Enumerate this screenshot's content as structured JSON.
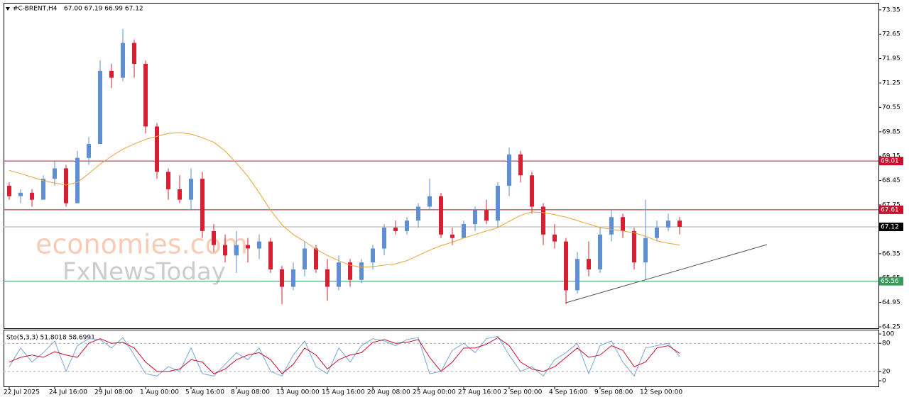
{
  "chart_data": [
    {
      "type": "candlestick",
      "title": "#C-BRENT,H4",
      "ohlc_text": "67.00 67.19 66.99 67.12",
      "categories": [
        "22 Jul 2025",
        null,
        null,
        null,
        "24 Jul 16:00",
        null,
        null,
        null,
        "29 Jul 08:00",
        null,
        null,
        null,
        "1 Aug 00:00",
        null,
        null,
        null,
        "5 Aug 16:00",
        null,
        null,
        null,
        "8 Aug 08:00",
        null,
        null,
        null,
        "13 Aug 00:00",
        null,
        null,
        null,
        "15 Aug 16:00",
        null,
        null,
        null,
        "20 Aug 08:00",
        null,
        null,
        null,
        "25 Aug 00:00",
        null,
        null,
        null,
        "27 Aug 16:00",
        null,
        null,
        null,
        "2 Sep 00:00",
        null,
        null,
        null,
        "4 Sep 16:00",
        null,
        null,
        null,
        "9 Sep 08:00",
        null,
        null,
        null,
        "12 Sep 00:00",
        null,
        null,
        null
      ],
      "open": [
        68.3,
        68.0,
        68.1,
        67.9,
        68.5,
        68.8,
        67.8,
        69.1,
        69.5,
        71.6,
        71.4,
        72.4,
        71.8,
        70.0,
        68.7,
        68.2,
        67.9,
        68.5,
        67.0,
        66.6,
        66.3,
        66.6,
        66.5,
        66.7,
        65.9,
        65.4,
        65.9,
        66.5,
        65.9,
        65.4,
        66.1,
        65.6,
        66.1,
        66.5,
        67.1,
        67.0,
        67.3,
        67.7,
        68.0,
        66.9,
        66.8,
        67.2,
        67.6,
        67.3,
        68.3,
        69.2,
        68.6,
        67.7,
        66.9,
        66.7,
        65.3,
        66.2,
        65.9,
        66.9,
        67.4,
        67.0,
        66.1,
        66.8,
        67.1,
        67.3
      ],
      "high": [
        68.4,
        68.2,
        68.2,
        68.6,
        69.0,
        68.9,
        69.3,
        69.7,
        71.9,
        71.8,
        72.8,
        72.5,
        71.9,
        70.1,
        68.8,
        68.6,
        68.8,
        68.7,
        67.2,
        66.9,
        67.0,
        66.8,
        66.9,
        66.8,
        66.0,
        66.1,
        66.7,
        66.6,
        66.2,
        66.3,
        66.2,
        66.2,
        66.6,
        67.2,
        67.3,
        67.4,
        67.8,
        68.5,
        68.1,
        67.1,
        67.3,
        67.7,
        67.9,
        68.4,
        69.4,
        69.3,
        68.7,
        67.8,
        67.2,
        66.8,
        66.4,
        66.7,
        67.1,
        67.6,
        67.5,
        67.1,
        67.9,
        67.3,
        67.5,
        67.4
      ],
      "low": [
        67.9,
        67.8,
        67.7,
        67.9,
        68.3,
        67.7,
        67.8,
        68.9,
        69.5,
        71.1,
        71.3,
        71.4,
        69.8,
        68.5,
        67.9,
        67.8,
        67.6,
        66.8,
        66.4,
        66.1,
        65.8,
        66.1,
        66.2,
        65.8,
        64.9,
        65.3,
        65.7,
        65.8,
        65.0,
        65.3,
        65.4,
        65.5,
        65.9,
        66.3,
        66.9,
        66.9,
        67.1,
        67.6,
        66.8,
        66.6,
        66.8,
        67.0,
        67.2,
        67.1,
        68.0,
        68.4,
        67.5,
        66.6,
        66.5,
        64.9,
        65.2,
        65.7,
        65.8,
        66.7,
        66.8,
        65.9,
        65.6,
        66.7,
        67.0,
        66.9
      ],
      "close": [
        68.0,
        68.1,
        67.9,
        68.5,
        68.8,
        67.8,
        69.1,
        69.5,
        71.6,
        71.4,
        72.4,
        71.8,
        70.0,
        68.7,
        68.2,
        67.9,
        68.5,
        67.0,
        66.6,
        66.3,
        66.6,
        66.5,
        66.7,
        65.9,
        65.4,
        65.9,
        66.5,
        65.9,
        65.4,
        66.1,
        65.6,
        66.1,
        66.5,
        67.1,
        67.0,
        67.3,
        67.7,
        68.0,
        66.9,
        66.8,
        67.2,
        67.6,
        67.3,
        68.3,
        69.2,
        68.6,
        67.7,
        66.9,
        66.7,
        65.3,
        66.2,
        65.9,
        66.9,
        67.4,
        67.0,
        66.1,
        66.8,
        67.1,
        67.3,
        67.12
      ],
      "up_color": "#5b8fd6",
      "down_color": "#d42030",
      "ma": {
        "color": "#e8a33a",
        "values": [
          68.74,
          68.65,
          68.55,
          68.45,
          68.38,
          68.32,
          68.4,
          68.65,
          68.92,
          69.15,
          69.35,
          69.5,
          69.63,
          69.72,
          69.8,
          69.83,
          69.78,
          69.68,
          69.55,
          69.3,
          68.95,
          68.57,
          68.1,
          67.6,
          67.18,
          66.9,
          66.7,
          66.48,
          66.3,
          66.15,
          66.02,
          65.96,
          65.98,
          66.02,
          66.06,
          66.15,
          66.3,
          66.45,
          66.58,
          66.68,
          66.8,
          66.9,
          67.0,
          67.1,
          67.28,
          67.45,
          67.55,
          67.53,
          67.47,
          67.4,
          67.3,
          67.2,
          67.1,
          67.05,
          67.0,
          66.95,
          66.85,
          66.72,
          66.65,
          66.6
        ]
      },
      "ylim": [
        64.21,
        73.53
      ],
      "yticks": [
        73.35,
        72.65,
        71.95,
        71.25,
        70.55,
        69.85,
        69.15,
        68.45,
        67.75,
        67.05,
        66.35,
        65.65,
        64.95,
        64.25
      ],
      "levels": [
        {
          "value": 69.01,
          "color": "#c8102e"
        },
        {
          "value": 67.61,
          "color": "#c8102e"
        },
        {
          "value": 67.12,
          "color": "#000000"
        },
        {
          "value": 65.56,
          "color": "#3a9a5a"
        }
      ],
      "watermark": [
        "economies.com",
        "FxNewsToday"
      ]
    },
    {
      "type": "line",
      "title": "Sto(5,3,3) 51.8018 58.6991",
      "ylim": [
        -12.1,
        107.6
      ],
      "yticks": [
        100,
        80,
        20,
        0
      ],
      "series": [
        {
          "color": "#7aa6d8",
          "values": [
            30,
            70,
            40,
            60,
            85,
            20,
            75,
            90,
            88,
            70,
            92,
            55,
            15,
            10,
            30,
            20,
            70,
            15,
            10,
            35,
            60,
            45,
            70,
            20,
            10,
            55,
            85,
            30,
            15,
            70,
            40,
            75,
            90,
            85,
            75,
            88,
            92,
            15,
            20,
            65,
            80,
            60,
            90,
            95,
            55,
            20,
            30,
            10,
            45,
            60,
            80,
            15,
            75,
            85,
            40,
            10,
            70,
            75,
            80,
            51.8018
          ]
        },
        {
          "color": "#c8102e",
          "values": [
            40,
            50,
            55,
            50,
            62,
            55,
            50,
            80,
            90,
            80,
            82,
            70,
            40,
            20,
            20,
            25,
            45,
            40,
            15,
            25,
            45,
            55,
            60,
            45,
            15,
            35,
            70,
            55,
            25,
            45,
            55,
            60,
            82,
            88,
            80,
            82,
            88,
            50,
            20,
            40,
            70,
            70,
            78,
            92,
            75,
            40,
            25,
            20,
            30,
            50,
            70,
            50,
            55,
            75,
            65,
            30,
            40,
            70,
            75,
            58.6991
          ]
        }
      ]
    }
  ]
}
